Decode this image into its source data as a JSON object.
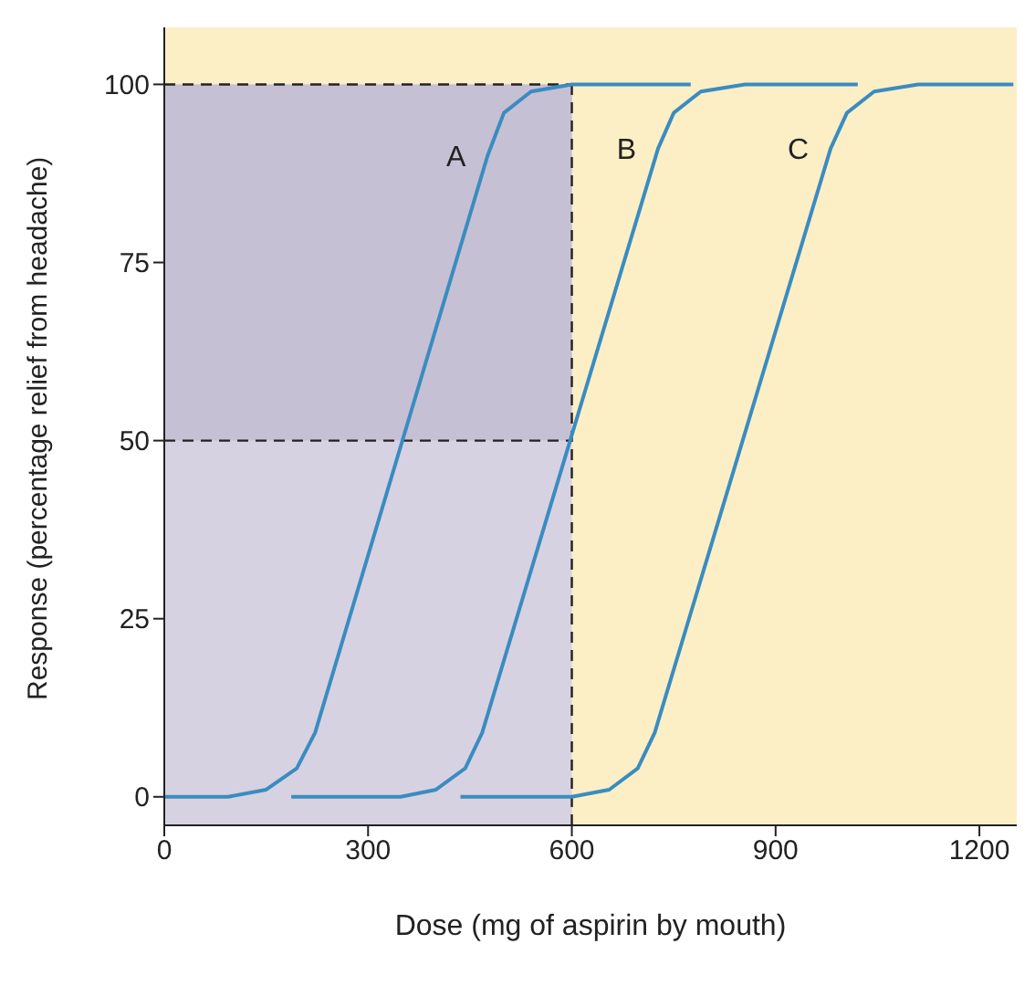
{
  "chart_data": {
    "type": "line",
    "xlabel": "Dose (mg of aspirin by mouth)",
    "ylabel": "Response (percentage relief from headache)",
    "xlim": [
      0,
      1255
    ],
    "ylim": [
      -4,
      108
    ],
    "xticks": [
      0,
      300,
      600,
      900,
      1200
    ],
    "yticks": [
      0,
      25,
      50,
      75,
      100
    ],
    "grid": false,
    "legend": false,
    "marker": "none",
    "line_style": "solid",
    "series": [
      {
        "name": "A",
        "color": "#3a8cc0",
        "x": [
          0,
          94,
          150,
          195,
          222,
          476,
          500,
          540,
          600,
          775
        ],
        "values": [
          0,
          0,
          1,
          4,
          9,
          90,
          96,
          99,
          100,
          100
        ]
      },
      {
        "name": "B",
        "color": "#3a8cc0",
        "x": [
          187,
          348,
          400,
          443,
          468,
          727,
          750,
          790,
          855,
          1021
        ],
        "values": [
          0,
          0,
          1,
          4,
          9,
          91,
          96,
          99,
          100,
          100
        ]
      },
      {
        "name": "C",
        "color": "#3a8cc0",
        "x": [
          436,
          600,
          655,
          697,
          722,
          981,
          1005,
          1045,
          1110,
          1250
        ],
        "values": [
          0,
          0,
          1,
          4,
          9,
          91,
          96,
          99,
          100,
          100
        ]
      }
    ],
    "ref_lines": [
      {
        "axis": "y",
        "value": 100,
        "line_style": "dashed",
        "color": "#222222"
      },
      {
        "axis": "y",
        "value": 50,
        "line_style": "dashed",
        "color": "#222222"
      },
      {
        "axis": "x",
        "value": 600,
        "line_style": "dashed",
        "color": "#222222"
      }
    ],
    "bands": [
      {
        "axis": "x",
        "from": 0,
        "to": 600,
        "color": "#d7d2e2"
      },
      {
        "axis": "y",
        "from": 50,
        "to": 100,
        "color": "#c6c0d4"
      }
    ]
  }
}
